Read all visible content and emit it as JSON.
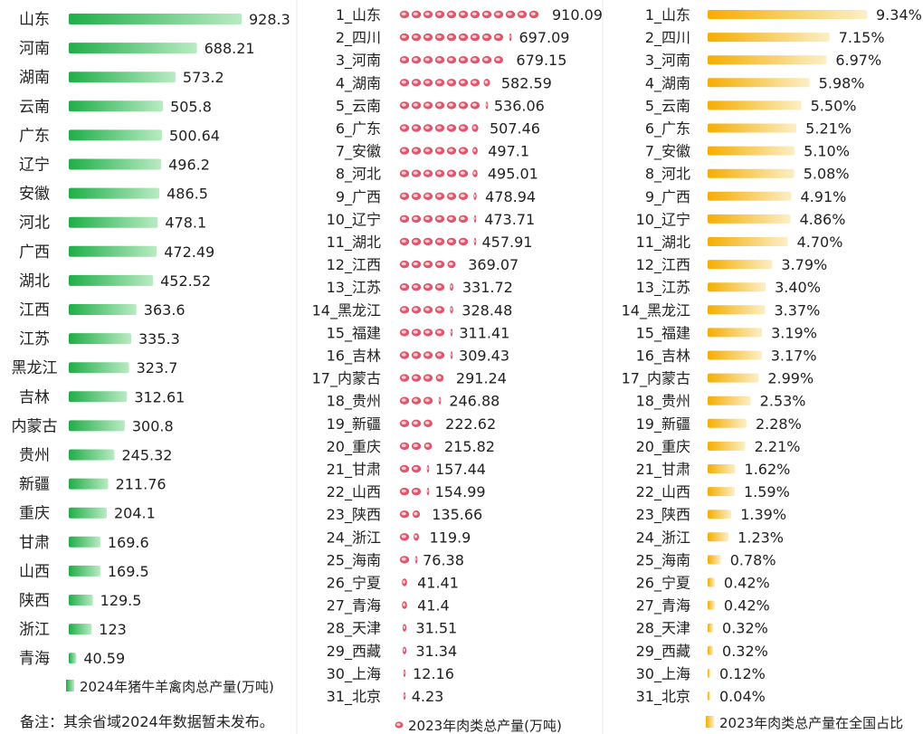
{
  "chart_data": [
    {
      "type": "bar",
      "orientation": "horizontal",
      "categories": [
        "山东",
        "河南",
        "湖南",
        "云南",
        "广东",
        "辽宁",
        "安徽",
        "河北",
        "广西",
        "湖北",
        "江西",
        "江苏",
        "黑龙江",
        "吉林",
        "内蒙古",
        "贵州",
        "新疆",
        "重庆",
        "甘肃",
        "山西",
        "陕西",
        "浙江",
        "青海"
      ],
      "value_labels": [
        "928.3",
        "688.21",
        "573.2",
        "505.8",
        "500.64",
        "496.2",
        "486.5",
        "478.1",
        "472.49",
        "452.52",
        "363.6",
        "335.3",
        "323.7",
        "312.61",
        "300.8",
        "245.32",
        "211.76",
        "204.1",
        "169.6",
        "169.5",
        "129.5",
        "123",
        "40.59"
      ],
      "values": [
        928.3,
        688.21,
        573.2,
        505.8,
        500.64,
        496.2,
        486.5,
        478.1,
        472.49,
        452.52,
        363.6,
        335.3,
        323.7,
        312.61,
        300.8,
        245.32,
        211.76,
        204.1,
        169.6,
        169.5,
        129.5,
        123,
        40.59
      ],
      "legend": "2024年猪牛羊禽肉总产量(万吨)",
      "color": "#2db84d"
    },
    {
      "type": "bar",
      "orientation": "horizontal",
      "categories": [
        "1_山东",
        "2_四川",
        "3_河南",
        "4_湖南",
        "5_云南",
        "6_广东",
        "7_安徽",
        "8_河北",
        "9_广西",
        "10_辽宁",
        "11_湖北",
        "12_江西",
        "13_江苏",
        "14_黑龙江",
        "15_福建",
        "16_吉林",
        "17_内蒙古",
        "18_贵州",
        "19_新疆",
        "20_重庆",
        "21_甘肃",
        "22_山西",
        "23_陕西",
        "24_浙江",
        "25_海南",
        "26_宁夏",
        "27_青海",
        "28_天津",
        "29_西藏",
        "30_上海",
        "31_北京"
      ],
      "value_labels": [
        "910.09",
        "697.09",
        "679.15",
        "582.59",
        "536.06",
        "507.46",
        "497.1",
        "495.01",
        "478.94",
        "473.71",
        "457.91",
        "369.07",
        "331.72",
        "328.48",
        "311.41",
        "309.43",
        "291.24",
        "246.88",
        "222.62",
        "215.82",
        "157.44",
        "154.99",
        "135.66",
        "119.9",
        "76.38",
        "41.41",
        "41.4",
        "31.51",
        "31.34",
        "12.16",
        "4.23"
      ],
      "values": [
        910.09,
        697.09,
        679.15,
        582.59,
        536.06,
        507.46,
        497.1,
        495.01,
        478.94,
        473.71,
        457.91,
        369.07,
        331.72,
        328.48,
        311.41,
        309.43,
        291.24,
        246.88,
        222.62,
        215.82,
        157.44,
        154.99,
        135.66,
        119.9,
        76.38,
        41.41,
        41.4,
        31.51,
        31.34,
        12.16,
        4.23
      ],
      "legend": "2023年肉类总产量(万吨)",
      "color": "#e0566b"
    },
    {
      "type": "bar",
      "orientation": "horizontal",
      "categories": [
        "1_山东",
        "2_四川",
        "3_河南",
        "4_湖南",
        "5_云南",
        "6_广东",
        "7_安徽",
        "8_河北",
        "9_广西",
        "10_辽宁",
        "11_湖北",
        "12_江西",
        "13_江苏",
        "14_黑龙江",
        "15_福建",
        "16_吉林",
        "17_内蒙古",
        "18_贵州",
        "19_新疆",
        "20_重庆",
        "21_甘肃",
        "22_山西",
        "23_陕西",
        "24_浙江",
        "25_海南",
        "26_宁夏",
        "27_青海",
        "28_天津",
        "29_西藏",
        "30_上海",
        "31_北京"
      ],
      "value_labels": [
        "9.34%",
        "7.15%",
        "6.97%",
        "5.98%",
        "5.50%",
        "5.21%",
        "5.10%",
        "5.08%",
        "4.91%",
        "4.86%",
        "4.70%",
        "3.79%",
        "3.40%",
        "3.37%",
        "3.19%",
        "3.17%",
        "2.99%",
        "2.53%",
        "2.28%",
        "2.21%",
        "1.62%",
        "1.59%",
        "1.39%",
        "1.23%",
        "0.78%",
        "0.42%",
        "0.42%",
        "0.32%",
        "0.32%",
        "0.12%",
        "0.04%"
      ],
      "values": [
        9.34,
        7.15,
        6.97,
        5.98,
        5.5,
        5.21,
        5.1,
        5.08,
        4.91,
        4.86,
        4.7,
        3.79,
        3.4,
        3.37,
        3.19,
        3.17,
        2.99,
        2.53,
        2.28,
        2.21,
        1.62,
        1.59,
        1.39,
        1.23,
        0.78,
        0.42,
        0.42,
        0.32,
        0.32,
        0.12,
        0.04
      ],
      "legend": "2023年肉类总产量在全国占比",
      "color": "#f7b500"
    }
  ],
  "note": "备注：其余省域2024年数据暂未发布。"
}
